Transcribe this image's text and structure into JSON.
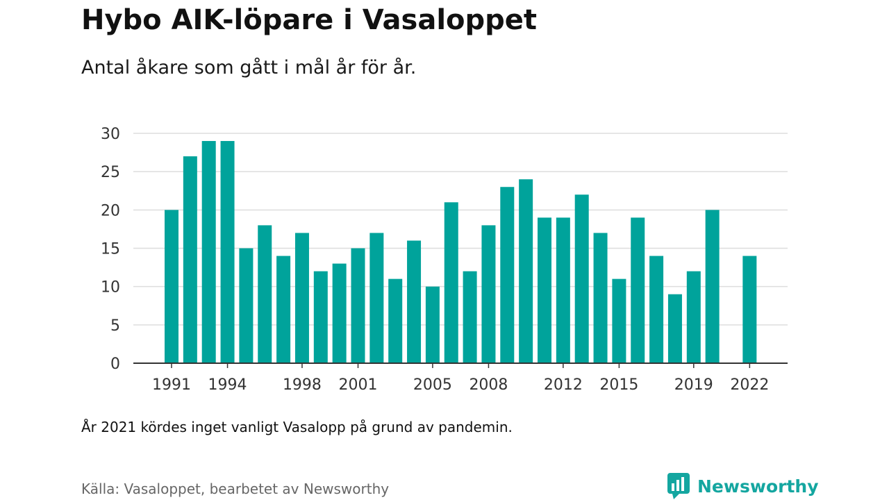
{
  "header": {
    "title": "Hybo AIK-löpare i Vasaloppet",
    "subtitle": "Antal åkare som gått i mål år för år."
  },
  "footer": {
    "note": "År 2021 kördes inget vanligt Vasalopp på grund av pandemin.",
    "source": "Källa: Vasaloppet, bearbetet av Newsworthy",
    "brand": "Newsworthy",
    "brand_icon": "newsworthy-logo-icon"
  },
  "colors": {
    "bar": "#00a39b",
    "grid": "#dddddd",
    "axis": "#333333",
    "brand": "#14a6a0"
  },
  "chart_data": {
    "type": "bar",
    "title": "Hybo AIK-löpare i Vasaloppet",
    "subtitle": "Antal åkare som gått i mål år för år.",
    "xlabel": "",
    "ylabel": "",
    "categories": [
      1991,
      1992,
      1993,
      1994,
      1995,
      1996,
      1997,
      1998,
      1999,
      2000,
      2001,
      2002,
      2003,
      2004,
      2005,
      2006,
      2007,
      2008,
      2009,
      2010,
      2011,
      2012,
      2013,
      2014,
      2015,
      2016,
      2017,
      2018,
      2019,
      2020,
      2021,
      2022
    ],
    "values": [
      20,
      27,
      29,
      29,
      15,
      18,
      14,
      17,
      12,
      13,
      15,
      17,
      11,
      16,
      10,
      21,
      12,
      18,
      23,
      24,
      19,
      19,
      22,
      17,
      11,
      19,
      14,
      9,
      12,
      20,
      null,
      14
    ],
    "x_tick_labels": [
      "1991",
      "1994",
      "1998",
      "2001",
      "2005",
      "2008",
      "2012",
      "2015",
      "2019",
      "2022"
    ],
    "y_ticks": [
      0,
      5,
      10,
      15,
      20,
      25,
      30
    ],
    "ylim": [
      0,
      30
    ],
    "grid": true,
    "legend": "none"
  }
}
